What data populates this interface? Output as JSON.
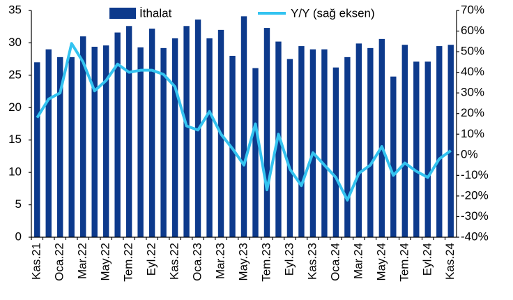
{
  "chart_data": {
    "type": "bar_line",
    "categories": [
      "Kas.21",
      null,
      "Oca.22",
      null,
      "Mar.22",
      null,
      "May.22",
      null,
      "Tem.22",
      null,
      "Eyl.22",
      null,
      "Kas.22",
      null,
      "Oca.23",
      null,
      "Mar.23",
      null,
      "May.23",
      null,
      "Tem.23",
      null,
      "Eyl.23",
      null,
      "Kas.23",
      null,
      "Oca.24",
      null,
      "Mar.24",
      null,
      "May.24",
      null,
      "Tem.24",
      null,
      "Eyl.24",
      null,
      "Kas.24"
    ],
    "series": [
      {
        "name": "İthalat",
        "type": "bar",
        "color": "#0d3a8c",
        "values": [
          27,
          29,
          27.8,
          27.8,
          31,
          29.4,
          29.6,
          31.6,
          32.6,
          29.3,
          32.2,
          29.2,
          30.7,
          32.6,
          33.6,
          30.7,
          32,
          28,
          34.1,
          26.1,
          32.3,
          30.2,
          27.5,
          29.5,
          29,
          29,
          26.2,
          27.8,
          29.9,
          29.2,
          30.6,
          24.8,
          29.7,
          27.1,
          27.1,
          29.5,
          29.7
        ]
      },
      {
        "name": "Y/Y (sağ eksen)",
        "type": "line",
        "axis": "y2",
        "color": "#33c3f0",
        "values": [
          18,
          27,
          30,
          54,
          45,
          31,
          36,
          44,
          40,
          41,
          41,
          39,
          33,
          14,
          12,
          21,
          10,
          3,
          -5,
          15,
          -17,
          10,
          -7,
          -15,
          1,
          -5,
          -11,
          -22,
          -9,
          -5,
          4,
          -10,
          -4,
          -8,
          -11,
          -2,
          2
        ]
      }
    ],
    "ylim": [
      0,
      35
    ],
    "yticks": [
      0,
      5,
      10,
      15,
      20,
      25,
      30,
      35
    ],
    "y2lim": [
      -40,
      70
    ],
    "y2ticks": [
      {
        "value": -40,
        "label": "-40%"
      },
      {
        "value": -30,
        "label": "-30%"
      },
      {
        "value": -20,
        "label": "-20%"
      },
      {
        "value": -10,
        "label": "-10%"
      },
      {
        "value": 0,
        "label": "0%"
      },
      {
        "value": 10,
        "label": "10%"
      },
      {
        "value": 20,
        "label": "20%"
      },
      {
        "value": 30,
        "label": "30%"
      },
      {
        "value": 40,
        "label": "40%"
      },
      {
        "value": 50,
        "label": "50%"
      },
      {
        "value": 60,
        "label": "60%"
      },
      {
        "value": 70,
        "label": "70%"
      }
    ],
    "legend": "top"
  }
}
